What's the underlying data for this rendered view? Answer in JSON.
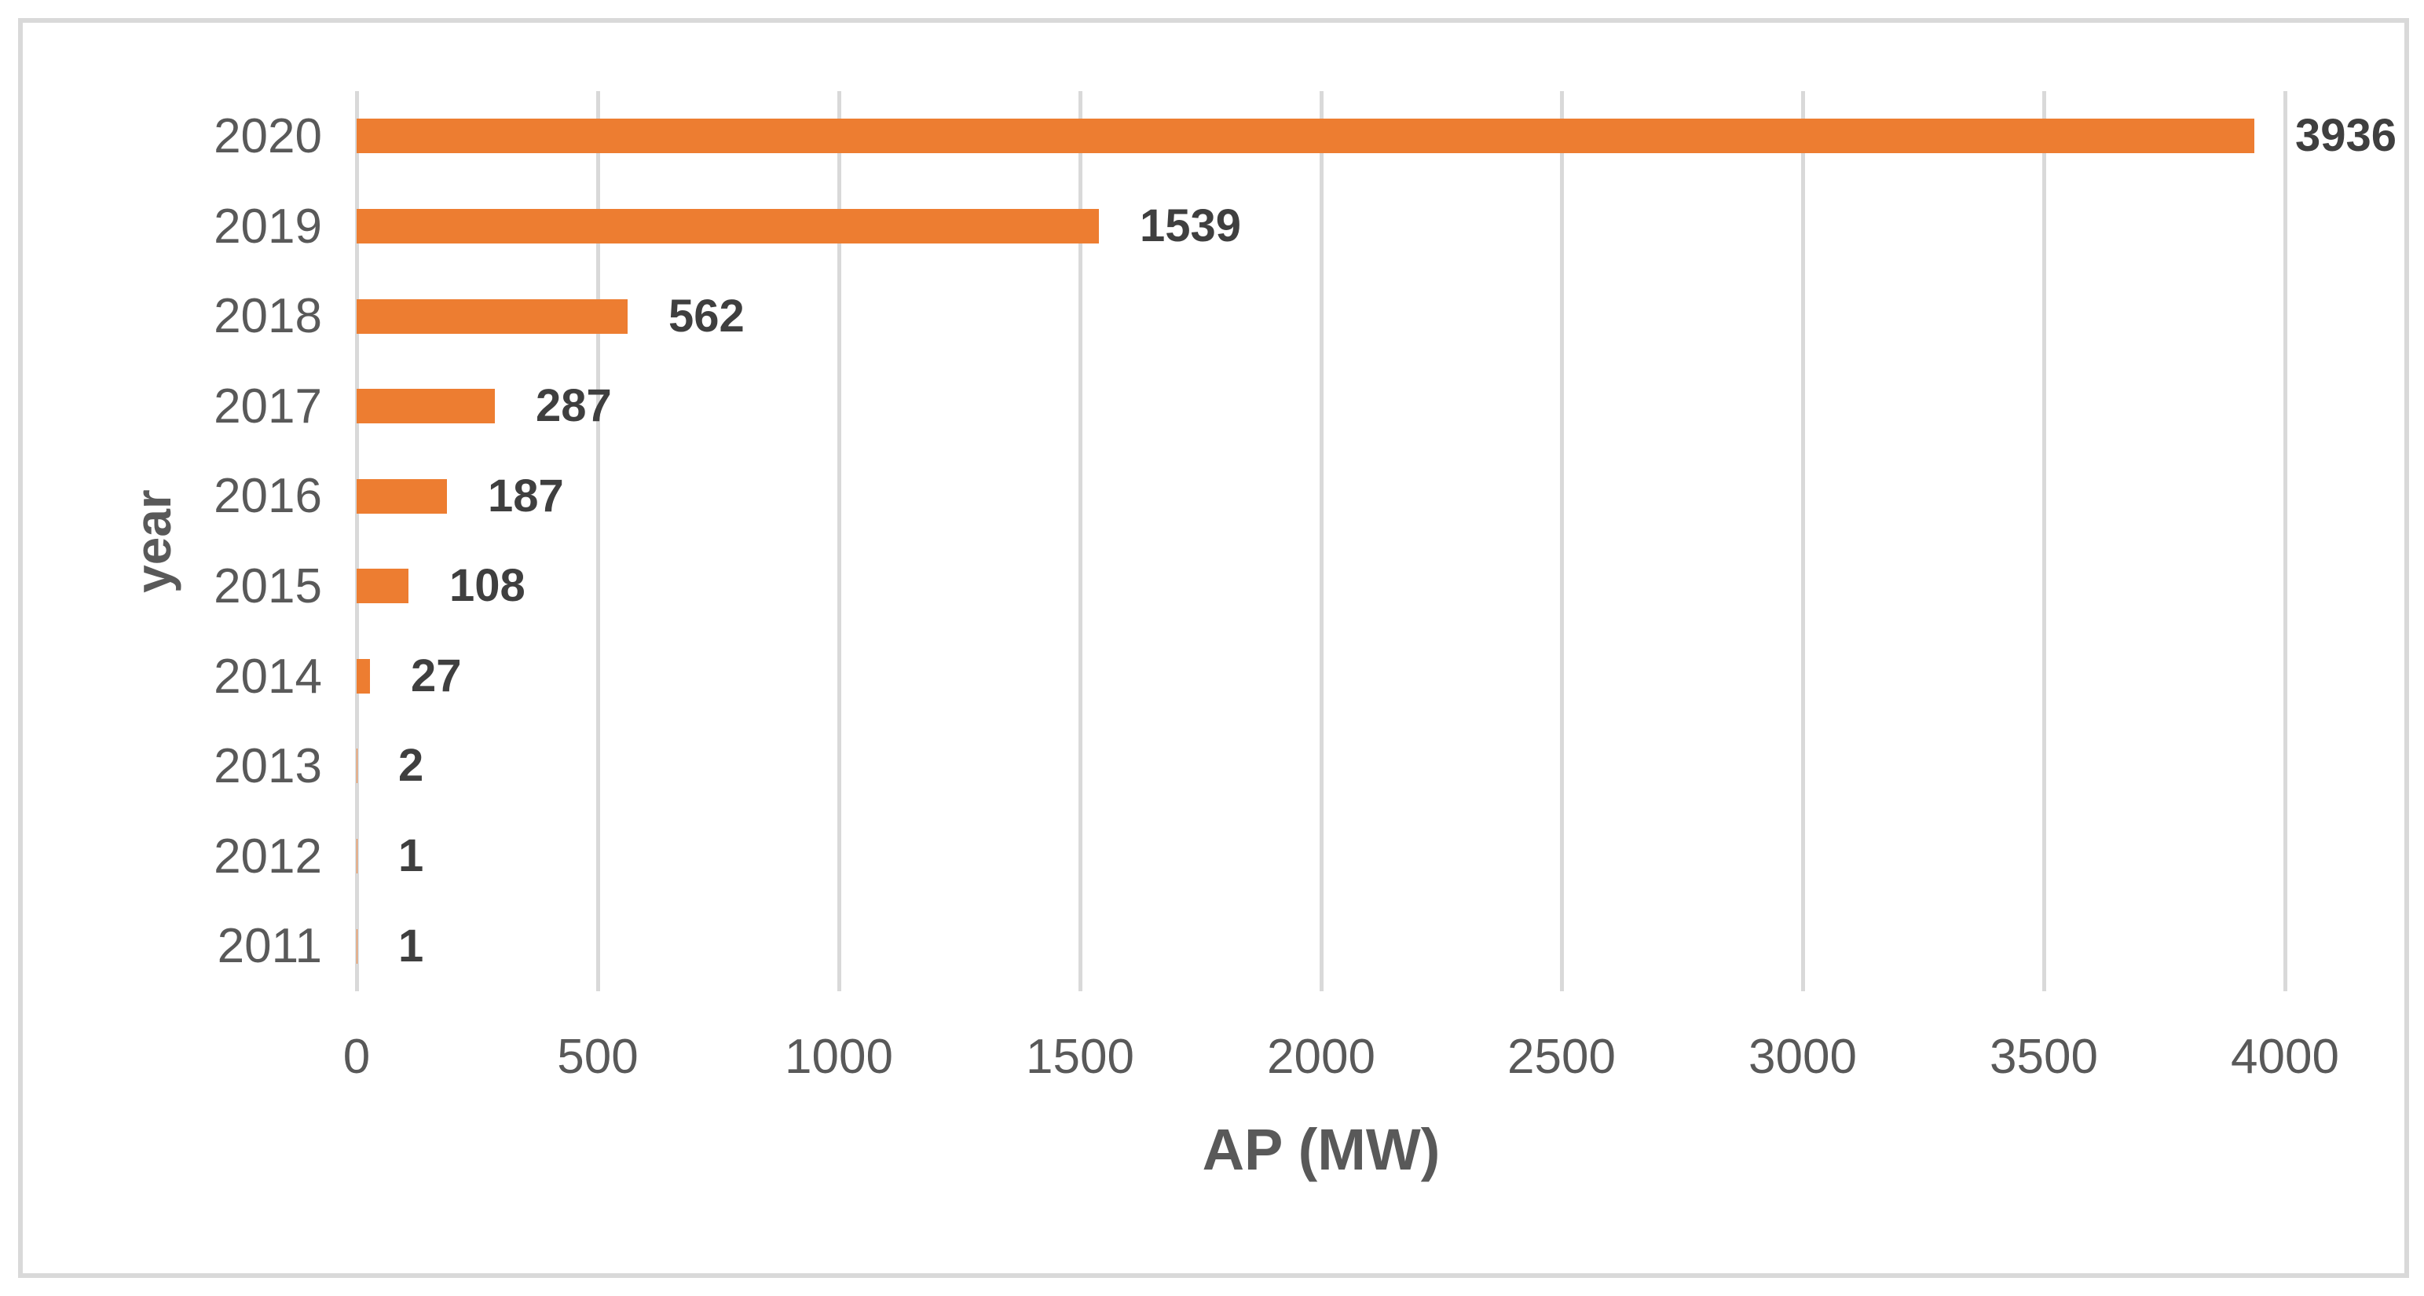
{
  "chart_data": {
    "type": "bar",
    "orientation": "horizontal",
    "title": "",
    "xlabel": "AP (MW)",
    "ylabel": "year",
    "categories": [
      "2020",
      "2019",
      "2018",
      "2017",
      "2016",
      "2015",
      "2014",
      "2013",
      "2012",
      "2011"
    ],
    "values": [
      3936,
      1539,
      562,
      287,
      187,
      108,
      27,
      2,
      1,
      1
    ],
    "data_labels": [
      "3936",
      "1539",
      "562",
      "287",
      "187",
      "108",
      "27",
      "2",
      "1",
      "1"
    ],
    "xticks": [
      "0",
      "500",
      "1000",
      "1500",
      "2000",
      "2500",
      "3000",
      "3500",
      "4000"
    ],
    "xlim": [
      0,
      4000
    ],
    "grid": "vertical-gridlines-on",
    "legend": "none",
    "colors": {
      "bar": "#ED7D31",
      "gridline": "#D9D9D9",
      "frame_border": "#D9D9D9",
      "tick_label": "#595959",
      "axis_title": "#595959",
      "data_label": "#3F3F3F",
      "background": "#FFFFFF"
    }
  }
}
